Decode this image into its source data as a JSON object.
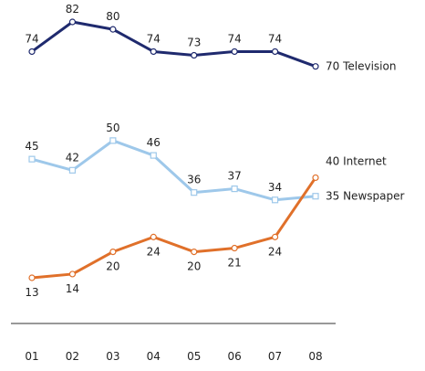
{
  "chart_data": {
    "type": "line",
    "title": "",
    "xlabel": "",
    "ylabel": "",
    "categories": [
      "01",
      "02",
      "03",
      "04",
      "05",
      "06",
      "07",
      "08"
    ],
    "series": [
      {
        "name": "Television",
        "values": [
          74,
          82,
          80,
          74,
          73,
          74,
          74,
          70
        ],
        "color": "#1f2a6e",
        "end_label": "70 Television"
      },
      {
        "name": "Newspaper",
        "values": [
          45,
          42,
          50,
          46,
          36,
          37,
          34,
          35
        ],
        "color": "#9ec8ea",
        "end_label": "35 Newspaper"
      },
      {
        "name": "Internet",
        "values": [
          13,
          14,
          20,
          24,
          20,
          21,
          24,
          40
        ],
        "color": "#e0702a",
        "end_label": "40 Internet"
      }
    ],
    "ylim": [
      13,
      82
    ],
    "grid": false,
    "legend": "end-of-line labels"
  }
}
